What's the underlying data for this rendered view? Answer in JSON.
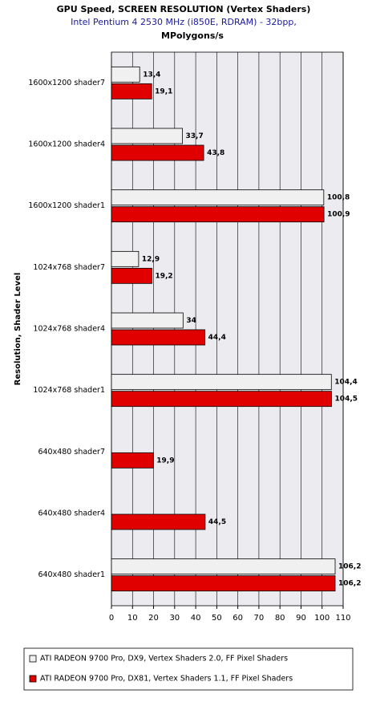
{
  "chart_data": {
    "type": "hbar",
    "title": "GPU Speed,  SCREEN RESOLUTION (Vertex Shaders)",
    "subtitle": "Intel Pentium 4 2530 MHz (i850E, RDRAM) - 32bpp,",
    "x_label": "MPolygons/s",
    "y_label": "Resolution, Shader Level",
    "categories": [
      "1600x1200 shader7",
      "1600x1200 shader4",
      "1600x1200 shader1",
      "1024x768 shader7",
      "1024x768 shader4",
      "1024x768 shader1",
      "640x480 shader7",
      "640x480 shader4",
      "640x480 shader1"
    ],
    "series": [
      {
        "name": "ATI RADEON 9700 Pro, DX9, Vertex Shaders 2.0, FF Pixel Shaders",
        "color": "#f0f0f0",
        "values": [
          13.4,
          33.7,
          100.8,
          12.9,
          34,
          104.4,
          null,
          null,
          106.2
        ],
        "value_labels": [
          "13,4",
          "33,7",
          "100,8",
          "12,9",
          "34",
          "104,4",
          null,
          null,
          "106,2"
        ]
      },
      {
        "name": "ATI RADEON 9700 Pro, DX81, Vertex Shaders 1.1, FF Pixel Shaders",
        "color": "#e00000",
        "values": [
          19.1,
          43.8,
          100.9,
          19.2,
          44.4,
          104.5,
          19.9,
          44.5,
          106.2
        ],
        "value_labels": [
          "19,1",
          "43,8",
          "100,9",
          "19,2",
          "44,4",
          "104,5",
          "19,9",
          "44,5",
          "106,2"
        ]
      }
    ],
    "xlim": [
      0,
      110
    ],
    "xticks": [
      0,
      10,
      20,
      30,
      40,
      50,
      60,
      70,
      80,
      90,
      100,
      110
    ],
    "grid": true
  }
}
